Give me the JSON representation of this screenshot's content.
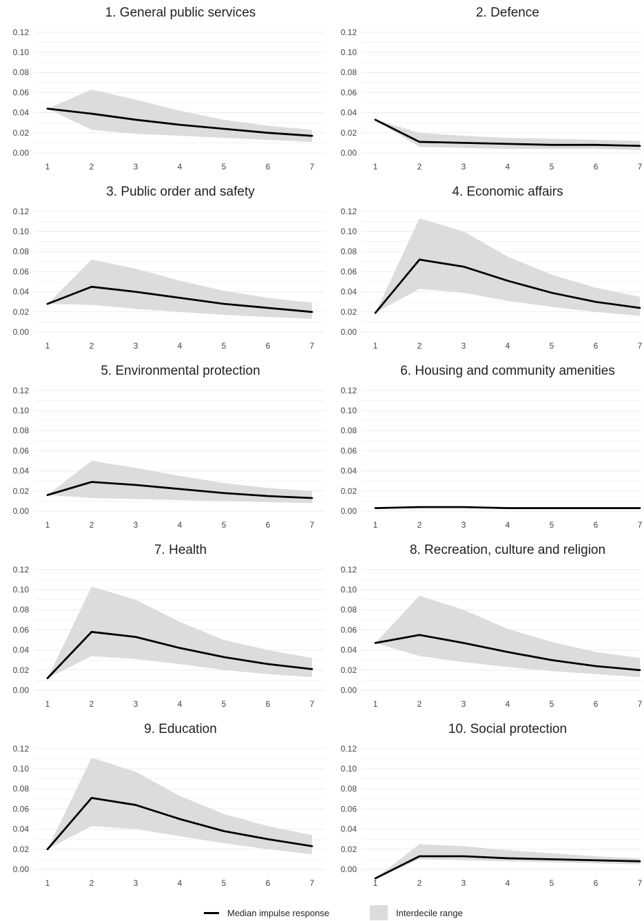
{
  "chart_data": [
    {
      "type": "line",
      "title": "1. General public services",
      "x": [
        1,
        2,
        3,
        4,
        5,
        6,
        7
      ],
      "ylim": [
        0,
        0.12
      ],
      "yticks": [
        "0.00",
        "0.02",
        "0.04",
        "0.06",
        "0.08",
        "0.10",
        "0.12"
      ],
      "series": [
        {
          "name": "Median impulse response",
          "values": [
            0.044,
            0.039,
            0.033,
            0.028,
            0.024,
            0.02,
            0.017
          ]
        }
      ],
      "band": {
        "name": "Interdecile range",
        "lower": [
          0.044,
          0.023,
          0.019,
          0.017,
          0.015,
          0.013,
          0.011
        ],
        "upper": [
          0.044,
          0.063,
          0.053,
          0.042,
          0.033,
          0.027,
          0.023
        ]
      }
    },
    {
      "type": "line",
      "title": "2. Defence",
      "x": [
        1,
        2,
        3,
        4,
        5,
        6,
        7
      ],
      "ylim": [
        0,
        0.12
      ],
      "yticks": [
        "0.00",
        "0.02",
        "0.04",
        "0.06",
        "0.08",
        "0.10",
        "0.12"
      ],
      "series": [
        {
          "name": "Median impulse response",
          "values": [
            0.033,
            0.011,
            0.01,
            0.009,
            0.008,
            0.008,
            0.007
          ]
        }
      ],
      "band": {
        "name": "Interdecile range",
        "lower": [
          0.033,
          0.006,
          0.005,
          0.004,
          0.004,
          0.004,
          0.003
        ],
        "upper": [
          0.033,
          0.02,
          0.017,
          0.015,
          0.014,
          0.013,
          0.012
        ]
      }
    },
    {
      "type": "line",
      "title": "3. Public order and safety",
      "x": [
        1,
        2,
        3,
        4,
        5,
        6,
        7
      ],
      "ylim": [
        0,
        0.12
      ],
      "yticks": [
        "0.00",
        "0.02",
        "0.04",
        "0.06",
        "0.08",
        "0.10",
        "0.12"
      ],
      "series": [
        {
          "name": "Median impulse response",
          "values": [
            0.028,
            0.045,
            0.04,
            0.034,
            0.028,
            0.024,
            0.02
          ]
        }
      ],
      "band": {
        "name": "Interdecile range",
        "lower": [
          0.028,
          0.027,
          0.023,
          0.02,
          0.017,
          0.015,
          0.013
        ],
        "upper": [
          0.028,
          0.072,
          0.063,
          0.051,
          0.041,
          0.034,
          0.029
        ]
      }
    },
    {
      "type": "line",
      "title": "4. Economic affairs",
      "x": [
        1,
        2,
        3,
        4,
        5,
        6,
        7
      ],
      "ylim": [
        0,
        0.12
      ],
      "yticks": [
        "0.00",
        "0.02",
        "0.04",
        "0.06",
        "0.08",
        "0.10",
        "0.12"
      ],
      "series": [
        {
          "name": "Median impulse response",
          "values": [
            0.019,
            0.072,
            0.065,
            0.051,
            0.039,
            0.03,
            0.024
          ]
        }
      ],
      "band": {
        "name": "Interdecile range",
        "lower": [
          0.019,
          0.043,
          0.039,
          0.031,
          0.025,
          0.02,
          0.016
        ],
        "upper": [
          0.019,
          0.113,
          0.1,
          0.075,
          0.057,
          0.044,
          0.035
        ]
      }
    },
    {
      "type": "line",
      "title": "5. Environmental protection",
      "x": [
        1,
        2,
        3,
        4,
        5,
        6,
        7
      ],
      "ylim": [
        0,
        0.12
      ],
      "yticks": [
        "0.00",
        "0.02",
        "0.04",
        "0.06",
        "0.08",
        "0.10",
        "0.12"
      ],
      "series": [
        {
          "name": "Median impulse response",
          "values": [
            0.016,
            0.029,
            0.026,
            0.022,
            0.018,
            0.015,
            0.013
          ]
        }
      ],
      "band": {
        "name": "Interdecile range",
        "lower": [
          0.016,
          0.013,
          0.012,
          0.011,
          0.01,
          0.009,
          0.008
        ],
        "upper": [
          0.016,
          0.05,
          0.043,
          0.035,
          0.028,
          0.023,
          0.02
        ]
      }
    },
    {
      "type": "line",
      "title": "6. Housing and community amenities",
      "x": [
        1,
        2,
        3,
        4,
        5,
        6,
        7
      ],
      "ylim": [
        0,
        0.12
      ],
      "yticks": [
        "0.00",
        "0.02",
        "0.04",
        "0.06",
        "0.08",
        "0.10",
        "0.12"
      ],
      "series": [
        {
          "name": "Median impulse response",
          "values": [
            0.003,
            0.004,
            0.004,
            0.003,
            0.003,
            0.003,
            0.003
          ]
        }
      ],
      "band": {
        "name": "Interdecile range",
        "lower": [
          0.003,
          0.003,
          0.003,
          0.002,
          0.002,
          0.002,
          0.002
        ],
        "upper": [
          0.003,
          0.005,
          0.005,
          0.004,
          0.004,
          0.004,
          0.004
        ]
      }
    },
    {
      "type": "line",
      "title": "7. Health",
      "x": [
        1,
        2,
        3,
        4,
        5,
        6,
        7
      ],
      "ylim": [
        0,
        0.12
      ],
      "yticks": [
        "0.00",
        "0.02",
        "0.04",
        "0.06",
        "0.08",
        "0.10",
        "0.12"
      ],
      "series": [
        {
          "name": "Median impulse response",
          "values": [
            0.012,
            0.058,
            0.053,
            0.042,
            0.033,
            0.026,
            0.021
          ]
        }
      ],
      "band": {
        "name": "Interdecile range",
        "lower": [
          0.012,
          0.034,
          0.031,
          0.026,
          0.02,
          0.016,
          0.013
        ],
        "upper": [
          0.012,
          0.103,
          0.09,
          0.068,
          0.05,
          0.04,
          0.032
        ]
      }
    },
    {
      "type": "line",
      "title": "8. Recreation, culture and religion",
      "x": [
        1,
        2,
        3,
        4,
        5,
        6,
        7
      ],
      "ylim": [
        0,
        0.12
      ],
      "yticks": [
        "0.00",
        "0.02",
        "0.04",
        "0.06",
        "0.08",
        "0.10",
        "0.12"
      ],
      "series": [
        {
          "name": "Median impulse response",
          "values": [
            0.047,
            0.055,
            0.047,
            0.038,
            0.03,
            0.024,
            0.02
          ]
        }
      ],
      "band": {
        "name": "Interdecile range",
        "lower": [
          0.047,
          0.034,
          0.028,
          0.023,
          0.019,
          0.016,
          0.013
        ],
        "upper": [
          0.047,
          0.094,
          0.08,
          0.061,
          0.048,
          0.038,
          0.032
        ]
      }
    },
    {
      "type": "line",
      "title": "9. Education",
      "x": [
        1,
        2,
        3,
        4,
        5,
        6,
        7
      ],
      "ylim": [
        0,
        0.12
      ],
      "yticks": [
        "0.00",
        "0.02",
        "0.04",
        "0.06",
        "0.08",
        "0.10",
        "0.12"
      ],
      "series": [
        {
          "name": "Median impulse response",
          "values": [
            0.02,
            0.071,
            0.064,
            0.05,
            0.038,
            0.03,
            0.023
          ]
        }
      ],
      "band": {
        "name": "Interdecile range",
        "lower": [
          0.02,
          0.043,
          0.04,
          0.033,
          0.026,
          0.02,
          0.015
        ],
        "upper": [
          0.02,
          0.111,
          0.097,
          0.073,
          0.055,
          0.043,
          0.034
        ]
      }
    },
    {
      "type": "line",
      "title": "10. Social protection",
      "x": [
        1,
        2,
        3,
        4,
        5,
        6,
        7
      ],
      "ylim": [
        -0.01,
        0.12
      ],
      "yticks": [
        "0.00",
        "0.02",
        "0.04",
        "0.06",
        "0.08",
        "0.10",
        "0.12"
      ],
      "series": [
        {
          "name": "Median impulse response",
          "values": [
            -0.009,
            0.013,
            0.013,
            0.011,
            0.01,
            0.009,
            0.008
          ]
        }
      ],
      "band": {
        "name": "Interdecile range",
        "lower": [
          -0.009,
          0.01,
          0.009,
          0.008,
          0.007,
          0.006,
          0.005
        ],
        "upper": [
          -0.009,
          0.025,
          0.023,
          0.019,
          0.016,
          0.013,
          0.011
        ]
      }
    }
  ],
  "legend": {
    "line_label": "Median impulse response",
    "band_label": "Interdecile range"
  },
  "colors": {
    "line": "#000000",
    "band": "#dcdcdc",
    "grid": "#ebebeb",
    "text": "#222222",
    "tick": "#444444"
  }
}
